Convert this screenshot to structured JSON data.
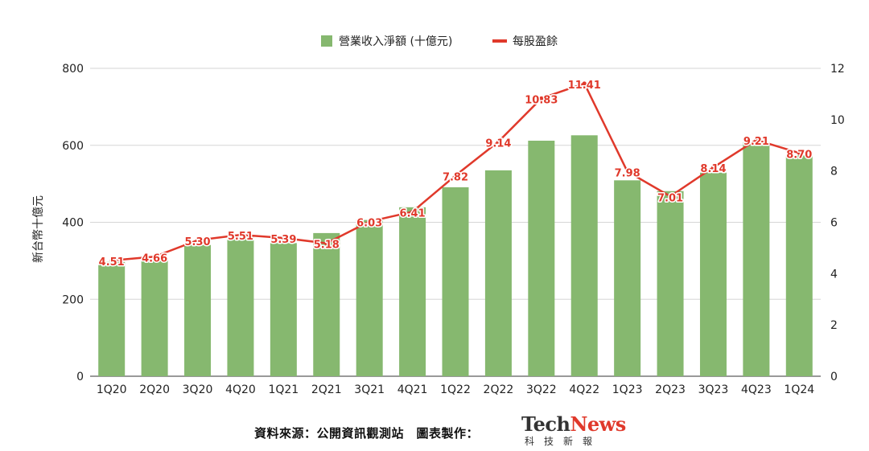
{
  "chart_data": {
    "type": "bar+line",
    "categories": [
      "1Q20",
      "2Q20",
      "3Q20",
      "4Q20",
      "1Q21",
      "2Q21",
      "3Q21",
      "4Q21",
      "1Q22",
      "2Q22",
      "3Q22",
      "4Q22",
      "1Q23",
      "2Q23",
      "3Q23",
      "4Q23",
      "1Q24"
    ],
    "series": [
      {
        "name": "營業收入淨額 (十億元)",
        "type": "bar",
        "axis": "left",
        "color": "#86b86f",
        "values": [
          297,
          301,
          341,
          362,
          346,
          372,
          406,
          439,
          491,
          535,
          612,
          626,
          509,
          481,
          529,
          608,
          574
        ]
      },
      {
        "name": "每股盈餘",
        "type": "line",
        "axis": "right",
        "color": "#e0392b",
        "values": [
          4.51,
          4.66,
          5.3,
          5.51,
          5.39,
          5.18,
          6.03,
          6.41,
          7.82,
          9.14,
          10.83,
          11.41,
          7.98,
          7.01,
          8.14,
          9.21,
          8.7
        ],
        "labels": [
          "4.51",
          "4.66",
          "5.30",
          "5.51",
          "5.39",
          "5.18",
          "6.03",
          "6.41",
          "7.82",
          "9.14",
          "10.83",
          "11.41",
          "7.98",
          "7.01",
          "8.14",
          "9.21",
          "8.70"
        ]
      }
    ],
    "ylabel": "新台幣十億元",
    "ylim": [
      0,
      800
    ],
    "yticks": [
      "0",
      "200",
      "400",
      "600",
      "800"
    ],
    "y2lim": [
      0,
      12
    ],
    "y2ticks": [
      "0",
      "2",
      "4",
      "6",
      "8",
      "10",
      "12"
    ],
    "grid": true,
    "legend": "top-center"
  },
  "footer": {
    "source": "資料來源：公開資訊觀測站　圖表製作：",
    "logo_tech": "Tech",
    "logo_news": "News",
    "logo_sub": "科技新報"
  }
}
